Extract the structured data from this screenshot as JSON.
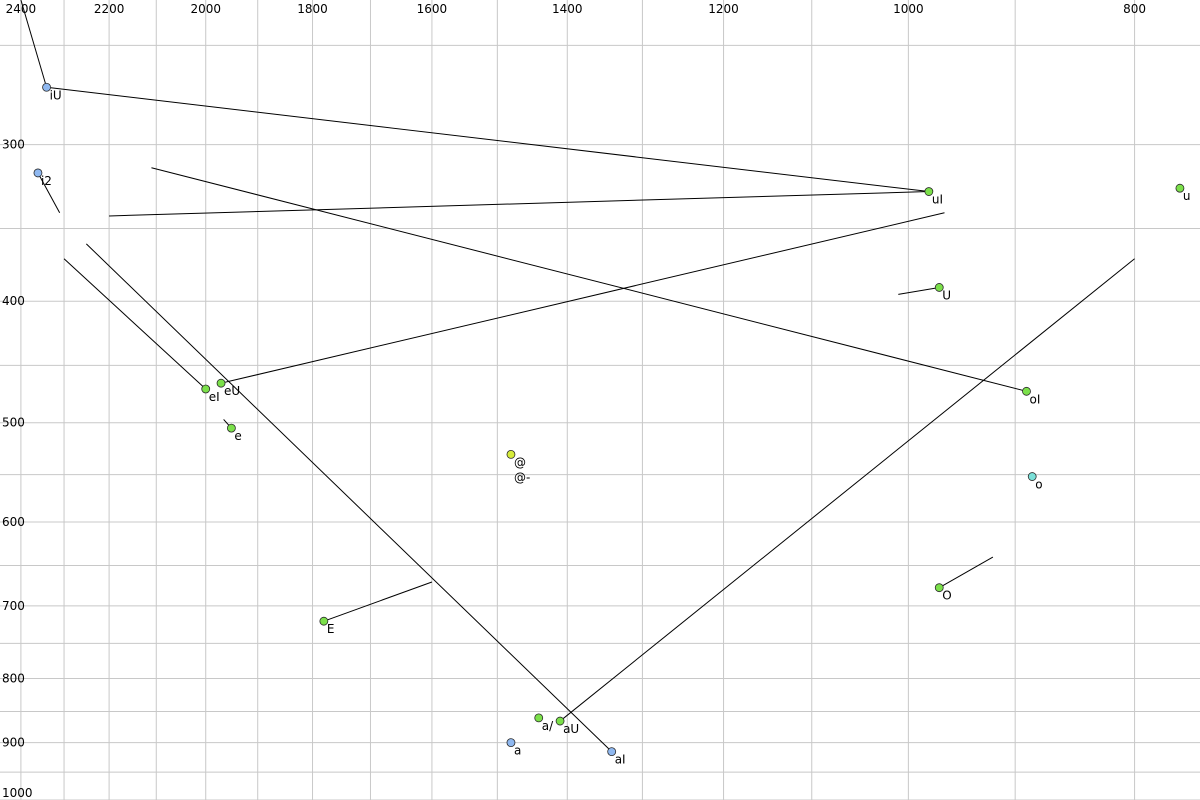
{
  "chart_data": {
    "type": "scatter",
    "x_axis": {
      "scale": "log",
      "reversed": true,
      "range": [
        2450,
        750
      ]
    },
    "y_axis": {
      "scale": "log",
      "reversed": true,
      "range": [
        230,
        1000
      ]
    },
    "grid": true,
    "x_ticks": [
      {
        "value": 2400,
        "label": "2400"
      },
      {
        "value": 2200,
        "label": "2200"
      },
      {
        "value": 2000,
        "label": "2000"
      },
      {
        "value": 1800,
        "label": "1800"
      },
      {
        "value": 1600,
        "label": "1600"
      },
      {
        "value": 1400,
        "label": "1400"
      },
      {
        "value": 1200,
        "label": "1200"
      },
      {
        "value": 1000,
        "label": "1000"
      },
      {
        "value": 800,
        "label": "800"
      }
    ],
    "x_minor_grid": [
      2300,
      2100,
      1900,
      1700,
      1500,
      1300,
      1100,
      900
    ],
    "y_ticks": [
      {
        "value": 300,
        "label": "300"
      },
      {
        "value": 400,
        "label": "400"
      },
      {
        "value": 500,
        "label": "500"
      },
      {
        "value": 600,
        "label": "600"
      },
      {
        "value": 700,
        "label": "700"
      },
      {
        "value": 800,
        "label": "800"
      },
      {
        "value": 900,
        "label": "900"
      },
      {
        "value": 1000,
        "label": "1000"
      }
    ],
    "y_minor_grid": [
      250,
      350,
      450,
      550,
      650,
      750,
      850,
      950
    ],
    "points": [
      {
        "label": "iU",
        "f2": 2340,
        "f1": 270,
        "color": "#8fb8f0"
      },
      {
        "label": "i2",
        "f2": 2360,
        "f1": 316,
        "color": "#8fb8f0"
      },
      {
        "label": "eI",
        "f2": 2000,
        "f1": 470,
        "color": "#7be04a"
      },
      {
        "label": "eU",
        "f2": 1970,
        "f1": 465,
        "color": "#7be04a"
      },
      {
        "label": "e",
        "f2": 1950,
        "f1": 505,
        "color": "#7be04a"
      },
      {
        "label": "E",
        "f2": 1780,
        "f1": 720,
        "color": "#7be04a"
      },
      {
        "label": "@",
        "f2": 1480,
        "f1": 530,
        "color": "#d6ec3a"
      },
      {
        "label": "@-",
        "f2": 1480,
        "f1": 545,
        "color": null
      },
      {
        "label": "a/",
        "f2": 1440,
        "f1": 860,
        "color": "#7be04a"
      },
      {
        "label": "aU",
        "f2": 1410,
        "f1": 865,
        "color": "#7be04a"
      },
      {
        "label": "a",
        "f2": 1480,
        "f1": 900,
        "color": "#8fb8f0"
      },
      {
        "label": "aI",
        "f2": 1340,
        "f1": 915,
        "color": "#8fb8f0"
      },
      {
        "label": "uI",
        "f2": 980,
        "f1": 327,
        "color": "#7be04a"
      },
      {
        "label": "U",
        "f2": 970,
        "f1": 390,
        "color": "#7be04a"
      },
      {
        "label": "oI",
        "f2": 890,
        "f1": 472,
        "color": "#7be04a"
      },
      {
        "label": "o",
        "f2": 885,
        "f1": 552,
        "color": "#7ae0d8"
      },
      {
        "label": "O",
        "f2": 970,
        "f1": 677,
        "color": "#7be04a"
      },
      {
        "label": "u",
        "f2": 765,
        "f1": 325,
        "color": "#7be04a"
      }
    ],
    "trajectories": [
      {
        "from": "iU",
        "to": "uI"
      },
      {
        "from": "iU",
        "to": [
          2400,
          230
        ]
      },
      {
        "from": "i2",
        "to": [
          2310,
          340
        ]
      },
      {
        "from": "eI",
        "to": [
          2300,
          370
        ]
      },
      {
        "from": "eU",
        "to": [
          965,
          340
        ]
      },
      {
        "from": "uI",
        "to": [
          2200,
          342
        ]
      },
      {
        "from": "oI",
        "to": [
          2110,
          313
        ]
      },
      {
        "from": "U",
        "to": [
          1010,
          395
        ]
      },
      {
        "from": "e",
        "to": [
          1965,
          497
        ]
      },
      {
        "from": "E",
        "to": [
          1600,
          670
        ]
      },
      {
        "from": "aU",
        "to": [
          800,
          370
        ]
      },
      {
        "from": "aI",
        "to": [
          2250,
          360
        ]
      },
      {
        "from": "O",
        "to": [
          920,
          640
        ]
      }
    ]
  }
}
